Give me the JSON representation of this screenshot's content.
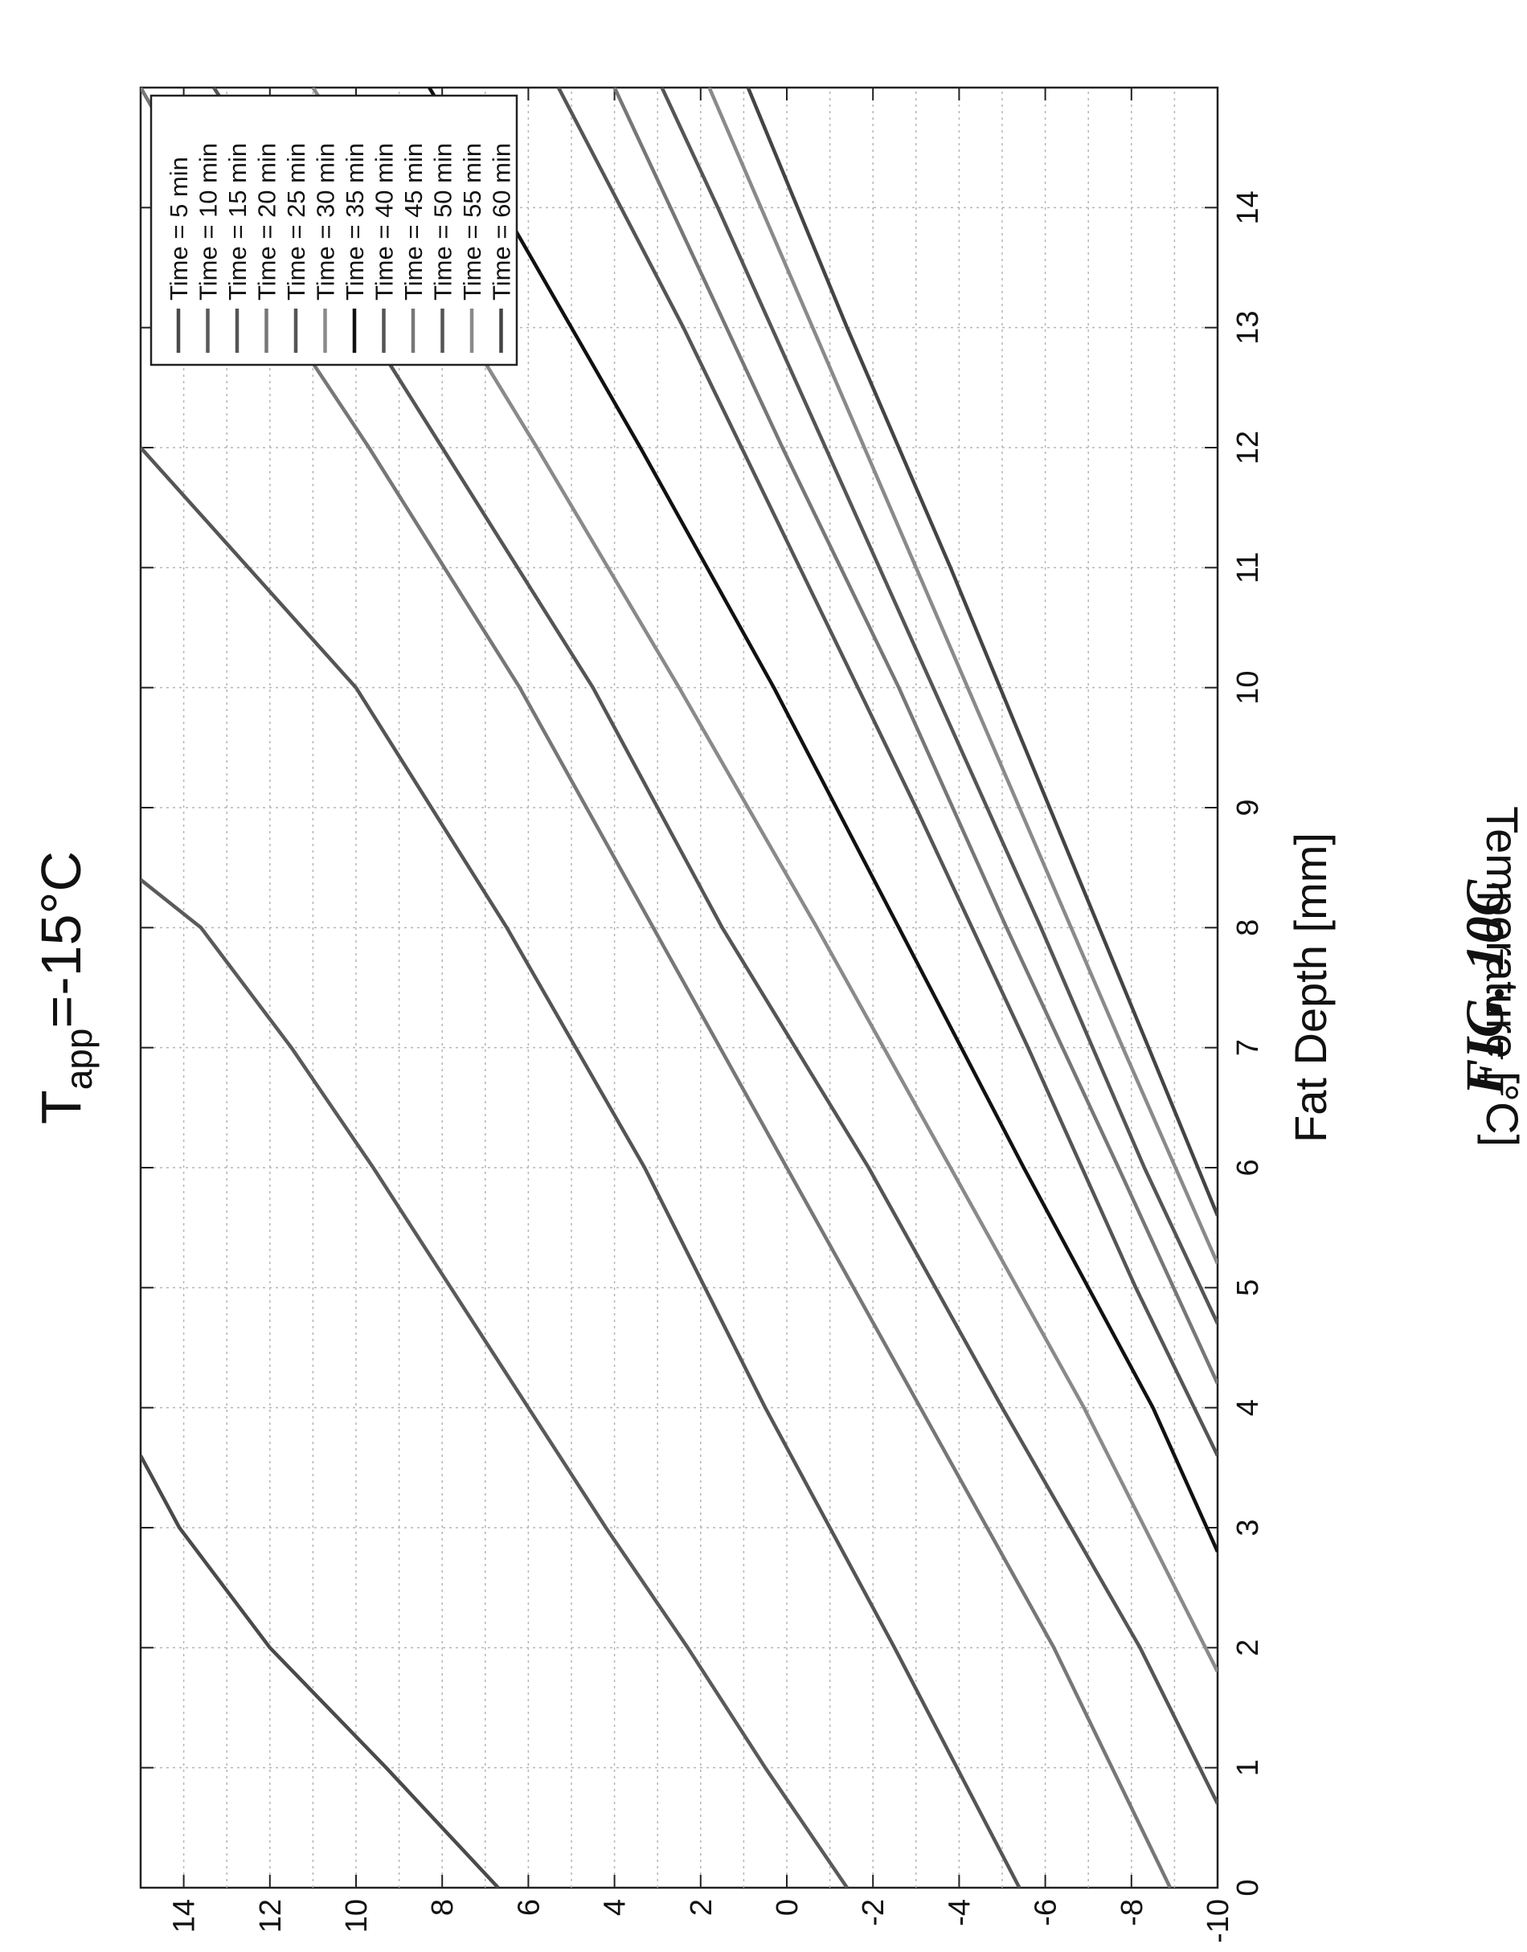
{
  "figure_label": "FIG. 10C",
  "chart_data": {
    "type": "line",
    "title": {
      "main": "T",
      "subscript": "app",
      "rest": "=-15°C"
    },
    "xlabel": "Fat Depth [mm]",
    "ylabel": "Temperature [°C]",
    "xlim": [
      0,
      15
    ],
    "ylim": [
      -10,
      15
    ],
    "x_ticks": [
      0,
      1,
      2,
      3,
      4,
      5,
      6,
      7,
      8,
      9,
      10,
      11,
      12,
      13,
      14
    ],
    "y_ticks": [
      -10,
      -8,
      -6,
      -4,
      -2,
      0,
      2,
      4,
      6,
      8,
      10,
      12,
      14
    ],
    "grid": true,
    "legend_position": "top-right",
    "orientation": "rotated 90° counter-clockwise",
    "series": [
      {
        "name": "Time = 5 min",
        "color": "#4a4a4a",
        "x": [
          0,
          1,
          2,
          3,
          3.6
        ],
        "y": [
          6.7,
          9.3,
          12.0,
          14.1,
          15
        ]
      },
      {
        "name": "Time = 10 min",
        "color": "#5a5a5a",
        "x": [
          0,
          1,
          2,
          3,
          4,
          5,
          6,
          7,
          8,
          8.4
        ],
        "y": [
          -1.4,
          0.5,
          2.3,
          4.2,
          6.0,
          7.8,
          9.6,
          11.5,
          13.6,
          15
        ]
      },
      {
        "name": "Time = 15 min",
        "color": "#555555",
        "x": [
          0,
          2,
          4,
          6,
          8,
          10,
          12
        ],
        "y": [
          -5.4,
          -2.5,
          0.5,
          3.3,
          6.5,
          10.0,
          15
        ]
      },
      {
        "name": "Time = 20 min",
        "color": "#777777",
        "x": [
          0,
          2,
          4,
          6,
          8,
          10,
          12,
          14,
          15
        ],
        "y": [
          -8.9,
          -6.2,
          -3.1,
          0.0,
          3.1,
          6.2,
          9.7,
          13.4,
          15
        ]
      },
      {
        "name": "Time = 25 min",
        "color": "#555555",
        "x": [
          0.7,
          2,
          4,
          6,
          8,
          10,
          12,
          14,
          15
        ],
        "y": [
          -10,
          -8.2,
          -5.0,
          -1.9,
          1.5,
          4.5,
          8.0,
          11.5,
          13.3
        ]
      },
      {
        "name": "Time = 30 min",
        "color": "#8a8a8a",
        "x": [
          1.8,
          4,
          6,
          8,
          10,
          12,
          14,
          15
        ],
        "y": [
          -10,
          -6.9,
          -3.8,
          -0.7,
          2.5,
          5.8,
          9.2,
          11.0
        ]
      },
      {
        "name": "Time = 35 min",
        "color": "#111111",
        "x": [
          2.8,
          4,
          6,
          8,
          10,
          12,
          14,
          15
        ],
        "y": [
          -10,
          -8.5,
          -5.5,
          -2.6,
          0.3,
          3.4,
          6.6,
          8.3
        ]
      },
      {
        "name": "Time = 40 min",
        "color": "#555555",
        "x": [
          3.6,
          5,
          7,
          9,
          11,
          13,
          15
        ],
        "y": [
          -10,
          -8.1,
          -5.6,
          -3.0,
          -0.3,
          2.4,
          5.3
        ]
      },
      {
        "name": "Time = 45 min",
        "color": "#777777",
        "x": [
          4.2,
          6,
          8,
          10,
          12,
          14,
          15
        ],
        "y": [
          -10,
          -7.7,
          -5.1,
          -2.6,
          0.1,
          2.7,
          4.0
        ]
      },
      {
        "name": "Time = 50 min",
        "color": "#555555",
        "x": [
          4.7,
          6,
          8,
          10,
          12,
          14,
          15
        ],
        "y": [
          -10,
          -8.3,
          -5.9,
          -3.4,
          -0.9,
          1.6,
          2.9
        ]
      },
      {
        "name": "Time = 55 min",
        "color": "#8a8a8a",
        "x": [
          5.2,
          7,
          9,
          11,
          13,
          15
        ],
        "y": [
          -10,
          -7.8,
          -5.4,
          -3.0,
          -0.6,
          1.8
        ]
      },
      {
        "name": "Time = 60 min",
        "color": "#444444",
        "x": [
          5.6,
          7,
          9,
          11,
          13,
          15
        ],
        "y": [
          -10,
          -8.4,
          -6.1,
          -3.8,
          -1.4,
          0.9
        ]
      }
    ]
  }
}
